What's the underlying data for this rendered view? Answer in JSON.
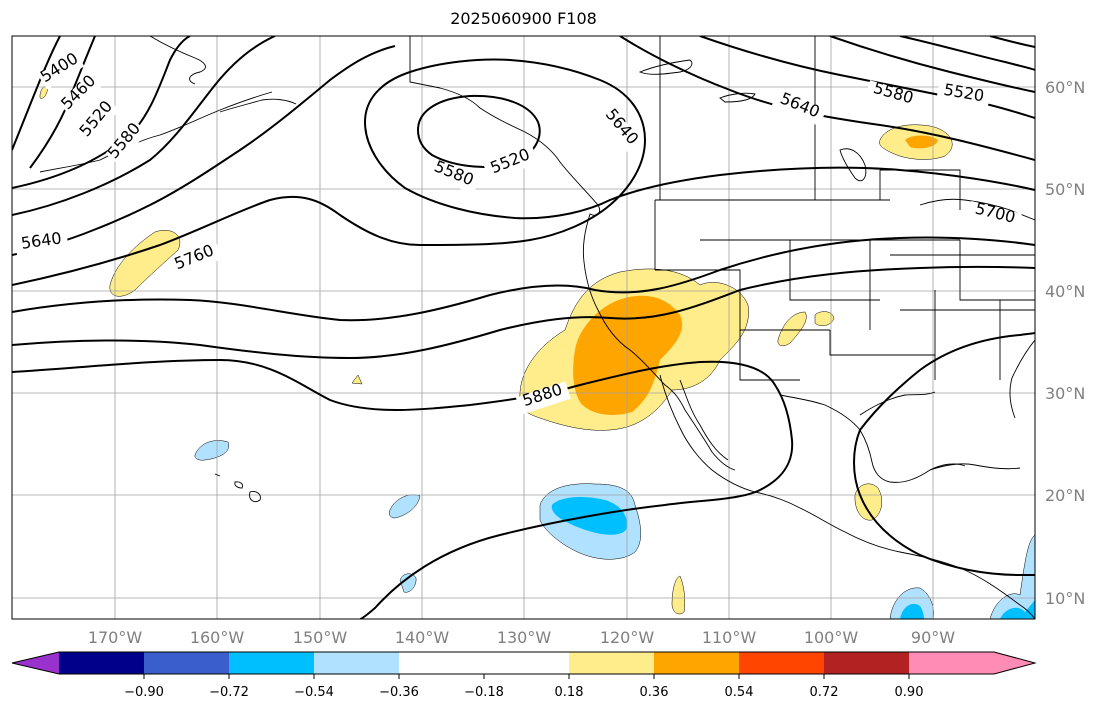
{
  "title": "2025060900 F108",
  "longitude_labels": [
    "170°W",
    "160°W",
    "150°W",
    "140°W",
    "130°W",
    "120°W",
    "110°W",
    "100°W",
    "90°W"
  ],
  "latitude_labels": [
    "60°N",
    "50°N",
    "40°N",
    "30°N",
    "20°N",
    "10°N"
  ],
  "contour_labels": [
    "5400",
    "5460",
    "5520",
    "5580",
    "5640",
    "5760",
    "5880",
    "5580",
    "5520",
    "5640",
    "5640",
    "5580",
    "5520",
    "5700"
  ],
  "colorbar": {
    "ticks": [
      "−0.90",
      "−0.72",
      "−0.54",
      "−0.36",
      "−0.18",
      "0.18",
      "0.36",
      "0.54",
      "0.72",
      "0.90"
    ],
    "colors": [
      "#9932cc",
      "#00008b",
      "#3a5fcd",
      "#00bfff",
      "#b0e2ff",
      "#ffffff",
      "#ffec8b",
      "#ffa500",
      "#ff4500",
      "#b22222",
      "#ff8cb4"
    ]
  },
  "shading_colors": {
    "pos_low": "#ffec8b",
    "pos_mid": "#ffa500",
    "neg_low": "#b0e2ff",
    "neg_mid": "#00bfff"
  }
}
